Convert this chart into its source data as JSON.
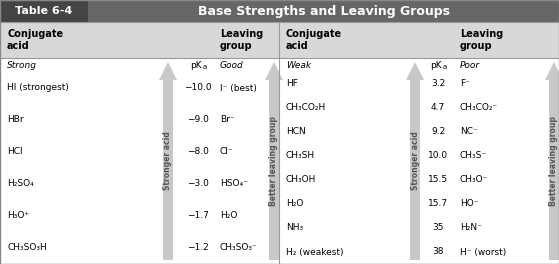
{
  "figsize": [
    5.59,
    2.64
  ],
  "dpi": 100,
  "title_label": "Table 6-4",
  "title_text": "Base Strengths and Leaving Groups",
  "title_bg": "#666666",
  "title_label_bg": "#444444",
  "header_bg": "#d8d8d8",
  "body_bg": "#ffffff",
  "border_color": "#888888",
  "left_header_cols": [
    "Conjugate\nacid",
    "",
    "Leaving\ngroup"
  ],
  "right_header_cols": [
    "Conjugate\nacid",
    "",
    "Leaving\ngroup"
  ],
  "left_row_label": "Strong",
  "left_col3_label": "Good",
  "right_row_label": "Weak",
  "right_col3_label": "Poor",
  "pka_label": "pK",
  "pka_sub": "a",
  "stronger_acid": "Stronger acid",
  "better_leaving": "Better leaving group",
  "left_rows": [
    [
      "HI (strongest)",
      "−10.0",
      "I⁻ (best)"
    ],
    [
      "HBr",
      "−9.0",
      "Br⁻"
    ],
    [
      "HCl",
      "−8.0",
      "Cl⁻"
    ],
    [
      "H₂SO₄",
      "−3.0",
      "HSO₄⁻"
    ],
    [
      "H₃O⁺",
      "−1.7",
      "H₂O"
    ],
    [
      "CH₃SO₃H",
      "−1.2",
      "CH₃SO₃⁻"
    ]
  ],
  "right_rows": [
    [
      "HF",
      "3.2",
      "F⁻"
    ],
    [
      "CH₃CO₂H",
      "4.7",
      "CH₃CO₂⁻"
    ],
    [
      "HCN",
      "9.2",
      "NC⁻"
    ],
    [
      "CH₃SH",
      "10.0",
      "CH₃S⁻"
    ],
    [
      "CH₃OH",
      "15.5",
      "CH₃O⁻"
    ],
    [
      "H₂O",
      "15.7",
      "HO⁻"
    ],
    [
      "NH₃",
      "35",
      "H₂N⁻"
    ],
    [
      "H₂ (weakest)",
      "38",
      "H⁻ (worst)"
    ]
  ],
  "arrow_color": "#c8c8c8",
  "arrow_text_color": "#555555"
}
